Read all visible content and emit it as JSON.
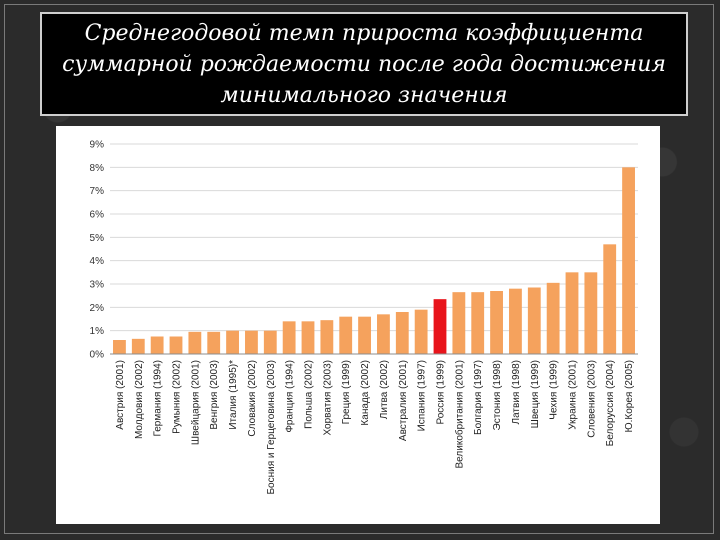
{
  "slide": {
    "title": "Среднегодовой темп прироста коэффициента суммарной рождаемости после года достижения минимального значения"
  },
  "colors": {
    "bar": "#f5a25d",
    "highlight": "#e8141b",
    "grid": "#d9d9d9"
  },
  "chart_data": {
    "type": "bar",
    "title": "",
    "xlabel": "",
    "ylabel": "",
    "ylim": [
      0,
      9
    ],
    "yticks": [
      "0%",
      "1%",
      "2%",
      "3%",
      "4%",
      "5%",
      "6%",
      "7%",
      "8%",
      "9%"
    ],
    "grid": true,
    "highlight_category": "Россия (1999)",
    "categories": [
      "Австрия (2001)",
      "Молдовия (2002)",
      "Германия (1994)",
      "Румыния (2002)",
      "Швейцария (2001)",
      "Венгрия (2003)",
      "Италия (1995)*",
      "Словакия (2002)",
      "Босния и Герцеговина (2003)",
      "Франция (1994)",
      "Польша (2002)",
      "Хорватия (2003)",
      "Греция (1999)",
      "Канада (2002)",
      "Литва (2002)",
      "Австралия (2001)",
      "Испания (1997)",
      "Россия (1999)",
      "Великобритания (2001)",
      "Болгария (1997)",
      "Эстония (1998)",
      "Латвия (1998)",
      "Швеция (1999)",
      "Чехия (1999)",
      "Украина (2001)",
      "Словения (2003)",
      "Белоруссия (2004)",
      "Ю.Корея (2005)"
    ],
    "values": [
      0.6,
      0.65,
      0.75,
      0.75,
      0.95,
      0.95,
      1.0,
      1.0,
      1.0,
      1.4,
      1.4,
      1.45,
      1.6,
      1.6,
      1.7,
      1.8,
      1.9,
      2.35,
      2.65,
      2.65,
      2.7,
      2.8,
      2.85,
      3.05,
      3.5,
      3.5,
      4.7,
      8.0
    ]
  }
}
